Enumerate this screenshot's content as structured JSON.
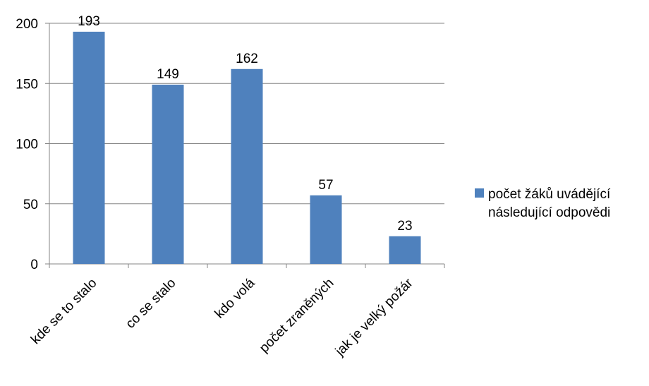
{
  "chart_data": {
    "type": "bar",
    "title": "",
    "xlabel": "",
    "ylabel": "",
    "ylim": [
      0,
      200
    ],
    "yticks": [
      0,
      50,
      100,
      150,
      200
    ],
    "grid": true,
    "legend_position": "right",
    "categories": [
      "kde se to stalo",
      "co se stalo",
      "kdo volá",
      "počet zraněných",
      "jak je velký požár"
    ],
    "series": [
      {
        "name": "počet žáků uvádějící následující odpovědi",
        "name_lines": [
          "počet žáků uvádějící",
          "následující odpovědi"
        ],
        "color": "#4f81bd",
        "values": [
          193,
          149,
          162,
          57,
          23
        ]
      }
    ]
  }
}
